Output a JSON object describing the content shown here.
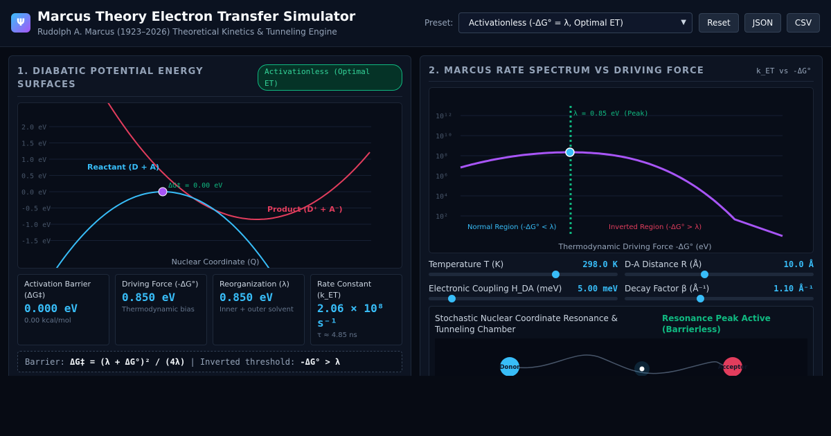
{
  "header": {
    "logo": "Ψ",
    "title": "Marcus Theory Electron Transfer Simulator",
    "subtitle": "Rudolph A. Marcus (1923–2026) Theoretical Kinetics & Tunneling Engine",
    "preset_label": "Preset:",
    "preset_value": "Activationless (-ΔG° = λ, Optimal ET)",
    "reset_label": "Reset",
    "json_label": "JSON",
    "csv_label": "CSV"
  },
  "left_panel": {
    "title_line1": "1. DIABATIC POTENTIAL ENERGY",
    "title_line2": "SURFACES",
    "badge_line1": "Activationless (Optimal",
    "badge_line2": "ET)",
    "chart": {
      "y_ticks": [
        "2.0 eV",
        "1.5 eV",
        "1.0 eV",
        "0.5 eV",
        "0.0 eV",
        "-0.5 eV",
        "-1.0 eV",
        "-1.5 eV"
      ],
      "reactant_label": "Reactant (D + A)",
      "product_label": "Product (D⁺ + A⁻)",
      "barrier_label": "ΔG‡ = 0.00 eV",
      "x_label": "Nuclear Coordinate (Q)",
      "reactant_color": "#38bdf8",
      "product_color": "#e23d5d",
      "crossing_color": "#a855f7"
    },
    "stats": [
      {
        "label": "Activation Barrier (ΔG‡)",
        "value": "0.000 eV",
        "sub": "0.00 kcal/mol"
      },
      {
        "label": "Driving Force (-ΔG°)",
        "value": "0.850 eV",
        "sub": "Thermodynamic bias"
      },
      {
        "label": "Reorganization (λ)",
        "value": "0.850 eV",
        "sub": "Inner + outer solvent"
      },
      {
        "label": "Rate Constant (k_ET)",
        "value": "2.06 × 10⁸ s⁻¹",
        "sub": "τ ≈ 4.85 ns"
      }
    ],
    "formula": {
      "barrier_prefix": "Barrier:",
      "barrier_expr": "ΔG‡ = (λ + ΔG°)² / (4λ)",
      "divider": "|",
      "threshold_prefix": "Inverted threshold:",
      "threshold_expr": "-ΔG° > λ"
    }
  },
  "right_panel": {
    "title": "2. MARCUS RATE SPECTRUM VS DRIVING FORCE",
    "tag": "k_ET vs -ΔG°",
    "chart": {
      "y_ticks": [
        "10¹²",
        "10¹⁰",
        "10⁸",
        "10⁶",
        "10⁴",
        "10²"
      ],
      "peak_label": "λ = 0.85 eV (Peak)",
      "normal_label": "Normal Region (-ΔG° < λ)",
      "inverted_label": "Inverted Region (-ΔG° > λ)",
      "x_label": "Thermodynamic Driving Force -ΔG° (eV)",
      "curve_color": "#a855f7",
      "peak_color": "#10b981"
    },
    "sliders": [
      {
        "label": "Temperature T (K)",
        "value": "298.0 K",
        "fraction": 0.67
      },
      {
        "label": "D-A Distance R (Å)",
        "value": "10.0 Å",
        "fraction": 0.42
      },
      {
        "label": "Electronic Coupling H_DA (meV)",
        "value": "5.00 meV",
        "fraction": 0.12
      },
      {
        "label": "Decay Factor β (Å⁻¹)",
        "value": "1.10 Å⁻¹",
        "fraction": 0.4
      }
    ],
    "chamber": {
      "title": "Stochastic Nuclear Coordinate Resonance & Tunneling Chamber",
      "status_line1": "Resonance Peak Active",
      "status_line2": "(Barrierless)",
      "donor_label": "Donor",
      "acceptor_label": "Acceptor"
    }
  }
}
